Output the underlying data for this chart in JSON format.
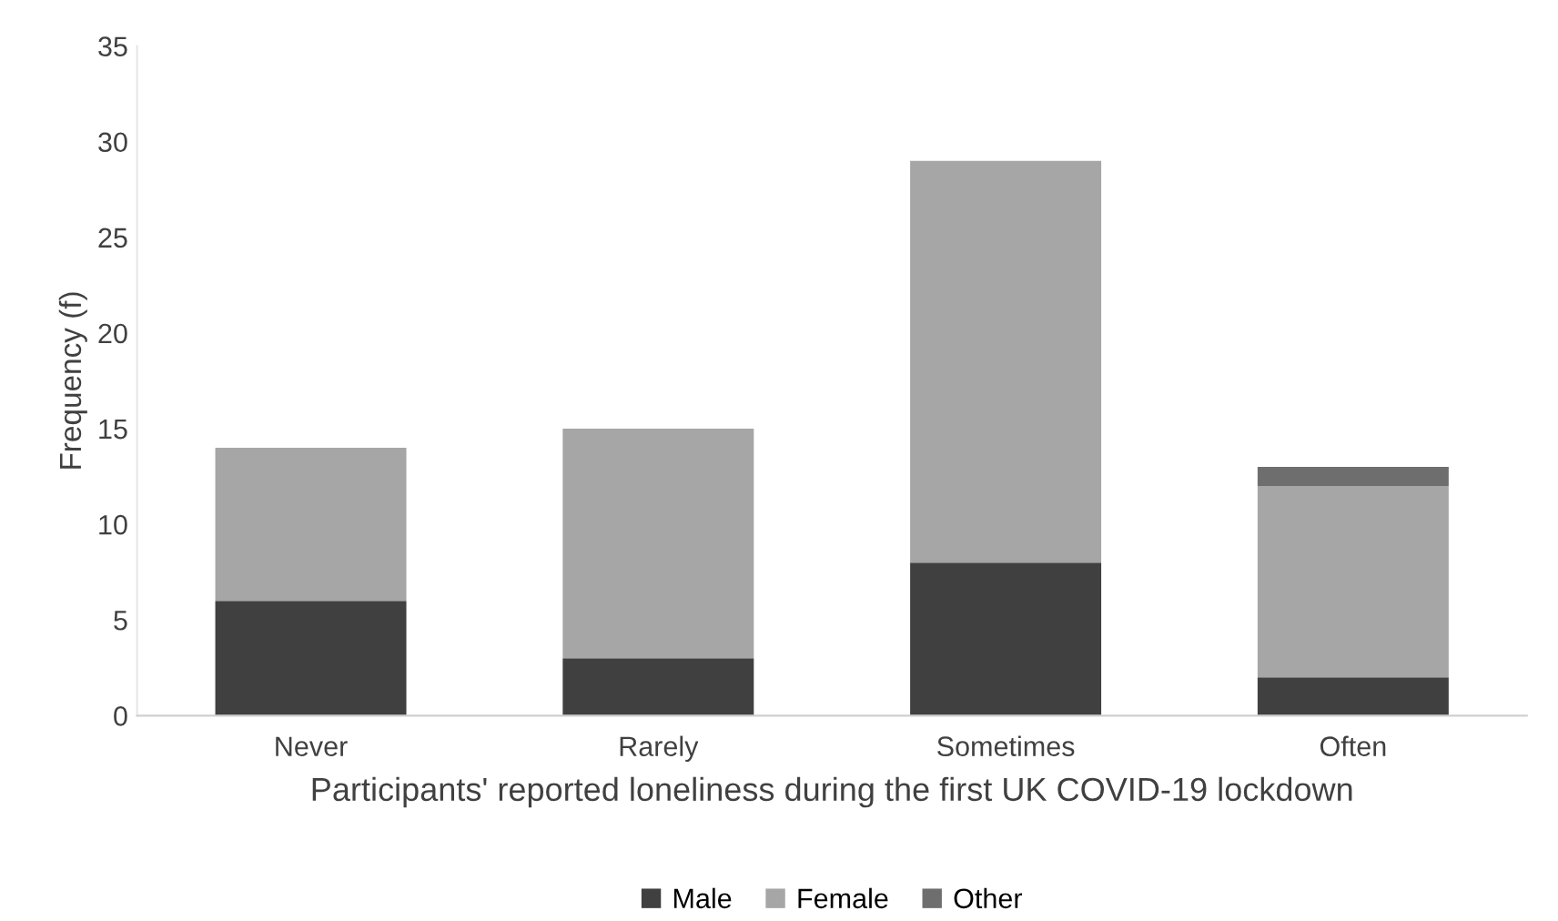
{
  "chart_data": {
    "type": "bar",
    "stacked": true,
    "categories": [
      "Never",
      "Rarely",
      "Sometimes",
      "Often"
    ],
    "series": [
      {
        "name": "Male",
        "color": "#404040",
        "values": [
          6,
          3,
          8,
          2
        ]
      },
      {
        "name": "Female",
        "color": "#a6a6a6",
        "values": [
          8,
          12,
          21,
          10
        ]
      },
      {
        "name": "Other",
        "color": "#6e6e6e",
        "values": [
          0,
          0,
          0,
          1
        ]
      }
    ],
    "xlabel": "Participants' reported loneliness during the first UK COVID-19 lockdown",
    "ylabel": "Frequency (f)",
    "ylim": [
      0,
      35
    ],
    "yticks": [
      0,
      5,
      10,
      15,
      20,
      25,
      30,
      35
    ],
    "grid": false,
    "legend": "bottom"
  }
}
